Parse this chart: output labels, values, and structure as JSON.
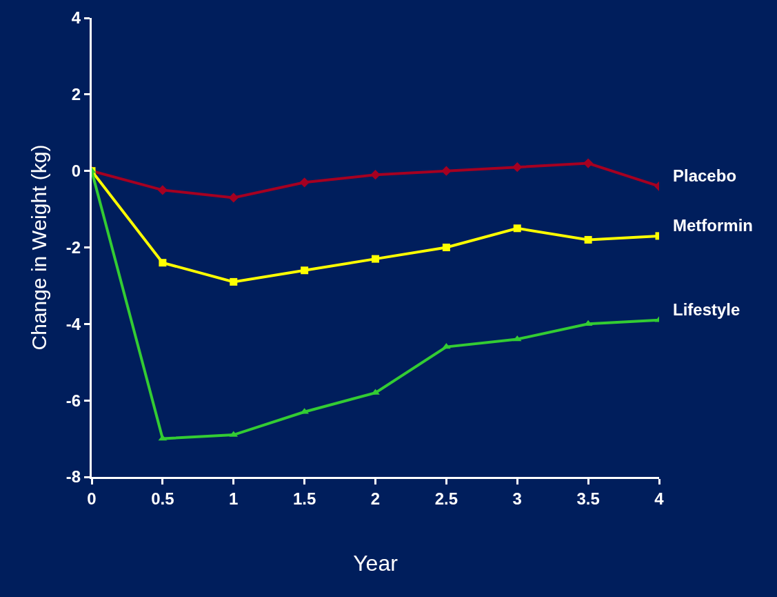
{
  "chart_data": {
    "type": "line",
    "xlabel": "Year",
    "ylabel": "Change in Weight (kg)",
    "x": [
      0,
      0.5,
      1,
      1.5,
      2,
      2.5,
      3,
      3.5,
      4
    ],
    "xlim": [
      0,
      4
    ],
    "xticks": [
      0,
      0.5,
      1,
      1.5,
      2,
      2.5,
      3,
      3.5,
      4
    ],
    "ylim": [
      -8,
      4
    ],
    "yticks": [
      -8,
      -6,
      -4,
      -2,
      0,
      2,
      4
    ],
    "grid": false,
    "legend": false,
    "series": [
      {
        "name": "Placebo",
        "color": "#a50021",
        "marker": "diamond",
        "values": [
          0,
          -0.5,
          -0.7,
          -0.3,
          -0.1,
          0,
          0.1,
          0.2,
          -0.4
        ]
      },
      {
        "name": "Metformin",
        "color": "#ffff00",
        "marker": "square",
        "values": [
          0,
          -2.4,
          -2.9,
          -2.6,
          -2.3,
          -2.0,
          -1.5,
          -1.8,
          -1.7
        ]
      },
      {
        "name": "Lifestyle",
        "color": "#33cc33",
        "marker": "triangle",
        "values": [
          0,
          -7.0,
          -6.9,
          -6.3,
          -5.8,
          -4.6,
          -4.4,
          -4.0,
          -3.9
        ]
      }
    ]
  }
}
